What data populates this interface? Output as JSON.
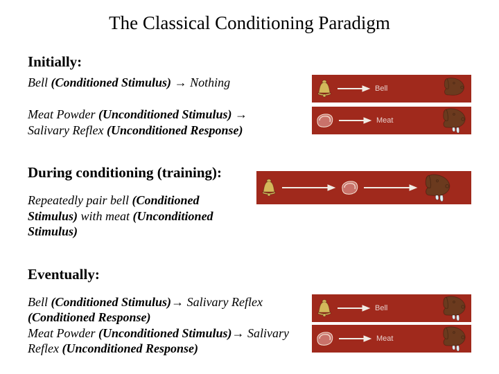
{
  "title": "The Classical Conditioning Paradigm",
  "sections": {
    "initially": {
      "heading": "Initially:",
      "line1_html": "Bell <span class='bold'>(Conditioned Stimulus)</span> → Nothing",
      "line2_html": "Meat Powder <span class='bold'>(Unconditioned Stimulus)</span> → Salivary Reflex <span class='bold'>(Unconditioned Response)</span>"
    },
    "during": {
      "heading": "During conditioning (training):",
      "line1_html": "Repeatedly pair bell <span class='bold'>(Conditioned Stimulus)</span> with meat <span class='bold'>(Unconditioned Stimulus)</span>"
    },
    "eventually": {
      "heading": "Eventually:",
      "line1_html": "Bell <span class='bold'>(Conditioned Stimulus)</span>→ Salivary Reflex <span class='bold'>(Conditioned Response)</span>",
      "line2_html": "Meat Powder <span class='bold'>(Unconditioned Stimulus)</span>→ Salivary Reflex <span class='bold'>(Unconditioned Response)</span>"
    }
  },
  "panels": {
    "bell_label": "Bell",
    "meat_label": "Meat",
    "bg": "#a0291c",
    "label_color": "#e8d0cc",
    "arrow_color": "#f0ece4",
    "bell_fill": "#d4b85a",
    "bell_stroke": "#5a4612",
    "meat_fill": "#c9726a",
    "meat_stroke": "#f5e6d8",
    "dog_fill": "#6b3a1e",
    "dog_dark": "#3a1f0e",
    "saliva": "#dff0f5"
  }
}
